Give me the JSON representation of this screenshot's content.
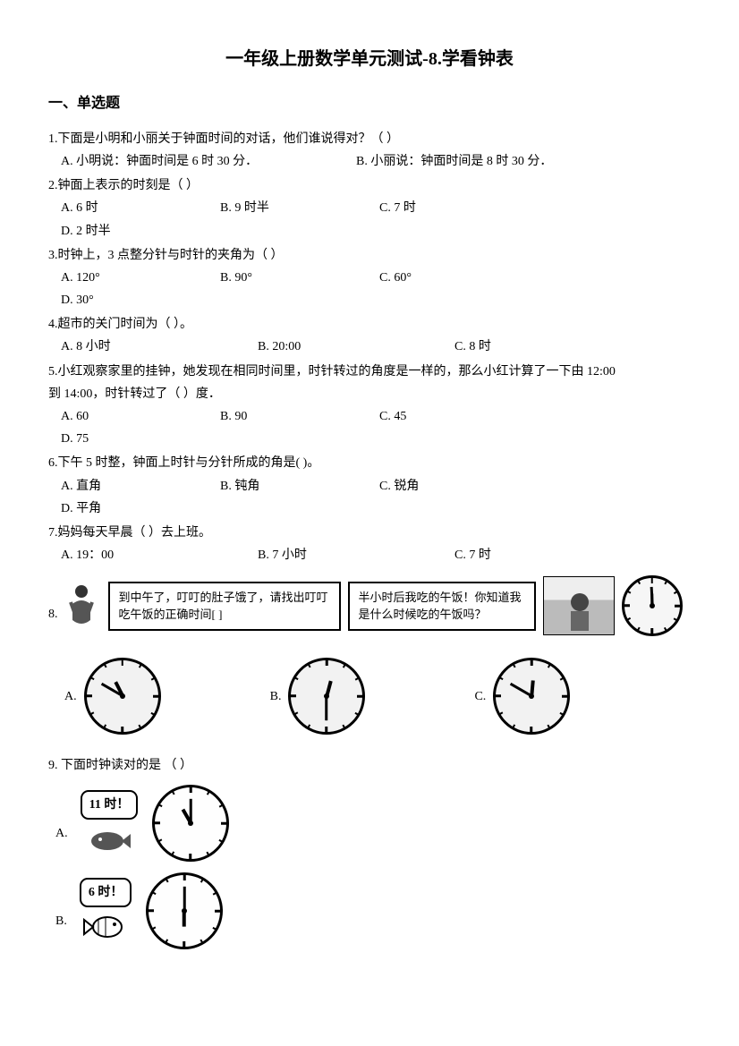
{
  "title": "一年级上册数学单元测试-8.学看钟表",
  "section1": {
    "heading": "一、单选题"
  },
  "q1": {
    "text": "1.下面是小明和小丽关于钟面时间的对话，他们谁说得对？（   ）",
    "A": "A. 小明说：钟面时间是 6 时 30 分．",
    "B": "B. 小丽说：钟面时间是 8 时 30 分．"
  },
  "q2": {
    "text": "2.钟面上表示的时刻是（   ）",
    "A": "A. 6 时",
    "B": "B. 9 时半",
    "C": "C. 7 时",
    "D": "D. 2 时半"
  },
  "q3": {
    "text": "3.时钟上，3 点整分针与时针的夹角为（   ）",
    "A": "A. 120°",
    "B": "B. 90°",
    "C": "C. 60°",
    "D": "D. 30°"
  },
  "q4": {
    "text": "4.超市的关门时间为（   ）。",
    "A": "A. 8 小时",
    "B": "B. 20:00",
    "C": "C. 8 时"
  },
  "q5": {
    "line1": "5.小红观察家里的挂钟，她发现在相同时间里，时针转过的角度是一样的，那么小红计算了一下由 12:00",
    "line2": "到 14:00，时针转过了（   ）度．",
    "A": "A. 60",
    "B": "B. 90",
    "C": "C. 45",
    "D": "D. 75"
  },
  "q6": {
    "text": "6.下午 5 时整，钟面上时针与分针所成的角是(    )。",
    "A": "A. 直角",
    "B": "B. 钝角",
    "C": "C. 锐角",
    "D": "D. 平角"
  },
  "q7": {
    "text": "7.妈妈每天早晨（   ）去上班。",
    "A": "A. 19：00",
    "B": "B. 7 小时",
    "C": "C. 7 时"
  },
  "q8": {
    "num": "8.",
    "bubbleLeft": "到中午了，叮叮的肚子饿了，请找出叮叮吃午饭的正确时间[      ]",
    "bubbleRight": "半小时后我吃的午饭！你知道我是什么时候吃的午饭吗？",
    "A": "A.",
    "B": "B.",
    "C": "C.",
    "clockA": {
      "hourAngle": -27,
      "minAngle": -60,
      "bg": "#f2f2f2"
    },
    "clockB": {
      "hourAngle": 15,
      "minAngle": 180,
      "bg": "#f2f2f2"
    },
    "clockC": {
      "hourAngle": 5,
      "minAngle": -60,
      "bg": "#f2f2f2"
    },
    "smallClock": {
      "hourAngle": 0,
      "minAngle": -3,
      "bg": "#f6f6f6"
    }
  },
  "q9": {
    "text": "9. 下面时钟读对的是  （   ）",
    "A": "A.",
    "B": "B.",
    "bubbleA": "11 时！",
    "bubbleB": "6 时！",
    "clockA": {
      "hourAngle": 330,
      "minAngle": 0,
      "bg": "#fefefe"
    },
    "clockB": {
      "hourAngle": 180,
      "minAngle": 0,
      "bg": "#fefefe"
    }
  },
  "colors": {
    "text": "#000000",
    "page": "#ffffff",
    "border": "#000000",
    "clockFill": "#f6f6f6"
  }
}
